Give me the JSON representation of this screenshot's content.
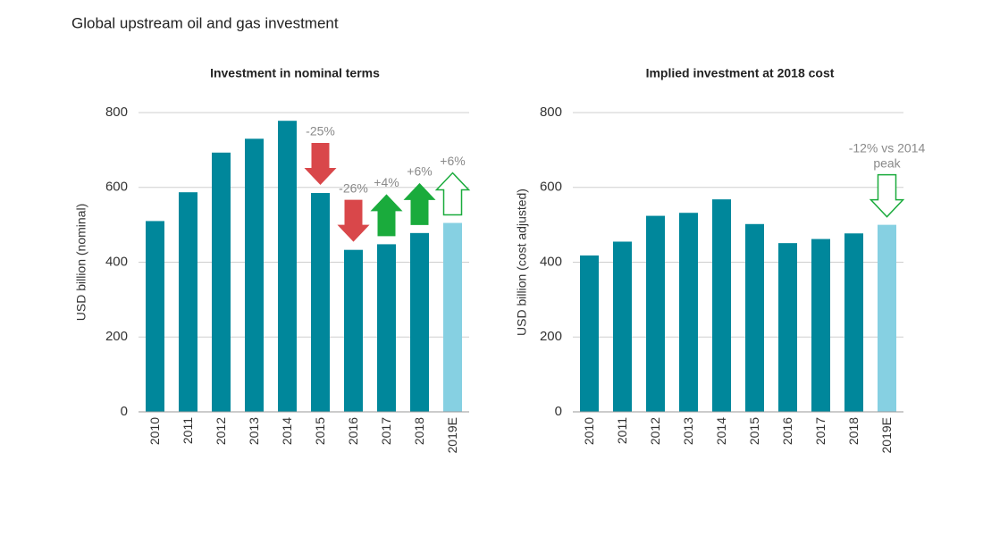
{
  "title": "Global upstream oil and gas investment",
  "chart_data": [
    {
      "type": "bar",
      "title": "Investment in nominal terms",
      "y_label": "USD billion (nominal)",
      "categories": [
        "2010",
        "2011",
        "2012",
        "2013",
        "2014",
        "2015",
        "2016",
        "2017",
        "2018",
        "2019E"
      ],
      "values": [
        510,
        587,
        693,
        730,
        778,
        585,
        433,
        448,
        478,
        505
      ],
      "colors": [
        "#00879b",
        "#00879b",
        "#00879b",
        "#00879b",
        "#00879b",
        "#00879b",
        "#00879b",
        "#00879b",
        "#00879b",
        "#86d0e2"
      ],
      "ylim": [
        0,
        800
      ],
      "yticks": [
        0,
        200,
        400,
        600,
        800
      ],
      "grid": true,
      "annotations": [
        {
          "text": [
            "-25%"
          ],
          "category": "2015",
          "direction": "down",
          "style": "filled",
          "color": "#d9474a"
        },
        {
          "text": [
            "-26%"
          ],
          "category": "2016",
          "direction": "down",
          "style": "filled",
          "color": "#d9474a"
        },
        {
          "text": [
            "+4%"
          ],
          "category": "2017",
          "direction": "up",
          "style": "filled",
          "color": "#1aab3c"
        },
        {
          "text": [
            "+6%"
          ],
          "category": "2018",
          "direction": "up",
          "style": "filled",
          "color": "#1aab3c"
        },
        {
          "text": [
            "+6%"
          ],
          "category": "2019E",
          "direction": "up",
          "style": "outline",
          "color": "#1aab3c"
        }
      ]
    },
    {
      "type": "bar",
      "title": "Implied investment at 2018 cost",
      "y_label": "USD billion (cost adjusted)",
      "categories": [
        "2010",
        "2011",
        "2012",
        "2013",
        "2014",
        "2015",
        "2016",
        "2017",
        "2018",
        "2019E"
      ],
      "values": [
        418,
        455,
        524,
        532,
        568,
        502,
        451,
        462,
        477,
        500
      ],
      "colors": [
        "#00879b",
        "#00879b",
        "#00879b",
        "#00879b",
        "#00879b",
        "#00879b",
        "#00879b",
        "#00879b",
        "#00879b",
        "#86d0e2"
      ],
      "ylim": [
        0,
        800
      ],
      "yticks": [
        0,
        200,
        400,
        600,
        800
      ],
      "grid": true,
      "annotations": [
        {
          "text": [
            "-12% vs 2014",
            "peak"
          ],
          "category": "2019E",
          "direction": "down",
          "style": "outline",
          "color": "#1aab3c"
        }
      ]
    }
  ]
}
